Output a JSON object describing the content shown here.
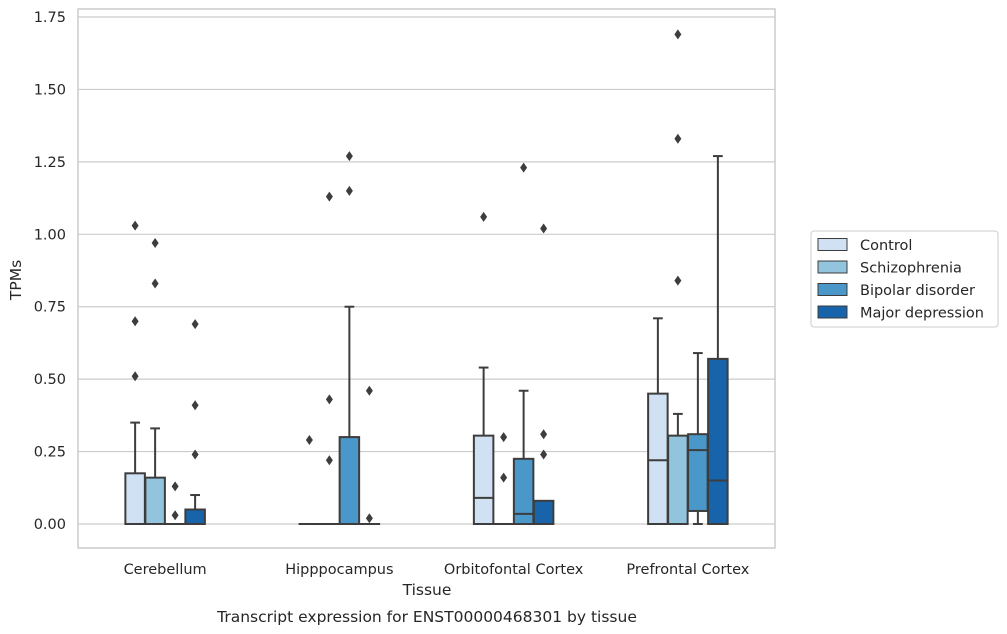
{
  "chart_data": {
    "type": "box",
    "title": "",
    "xlabel": "Tissue",
    "ylabel": "TPMs",
    "caption": "Transcript expression for ENST00000468301 by tissue",
    "categories": [
      "Cerebellum",
      "Hipppocampus",
      "Orbitofontal Cortex",
      "Prefrontal Cortex"
    ],
    "ylim": [
      -0.08,
      1.76
    ],
    "yticks": [
      0.0,
      0.25,
      0.5,
      0.75,
      1.0,
      1.25,
      1.5,
      1.75
    ],
    "ytick_labels": [
      "0.00",
      "0.25",
      "0.50",
      "0.75",
      "1.00",
      "1.25",
      "1.50",
      "1.75"
    ],
    "grid": "horizontal",
    "legend": {
      "placement": "right",
      "entries": [
        "Control",
        "Schizophrenia",
        "Bipolar disorder",
        "Major depression"
      ]
    },
    "colors": {
      "Control": "#cfe1f2",
      "Schizophrenia": "#93c4de",
      "Bipolar disorder": "#4a98c9",
      "Major depression": "#1764ab",
      "edge": "#3d3d3d",
      "grid": "#cccccc"
    },
    "series": [
      {
        "name": "Control",
        "boxes": [
          {
            "q1": 0.0,
            "median": 0.0,
            "q3": 0.175,
            "whisker_low": 0.0,
            "whisker_high": 0.35,
            "outliers": [
              0.51,
              0.7,
              1.03
            ]
          },
          {
            "q1": 0.0,
            "median": 0.0,
            "q3": 0.0,
            "whisker_low": 0.0,
            "whisker_high": 0.0,
            "outliers": [
              0.29
            ]
          },
          {
            "q1": 0.0,
            "median": 0.09,
            "q3": 0.305,
            "whisker_low": 0.0,
            "whisker_high": 0.54,
            "outliers": [
              1.06
            ]
          },
          {
            "q1": 0.0,
            "median": 0.22,
            "q3": 0.45,
            "whisker_low": 0.0,
            "whisker_high": 0.71,
            "outliers": []
          }
        ]
      },
      {
        "name": "Schizophrenia",
        "boxes": [
          {
            "q1": 0.0,
            "median": 0.0,
            "q3": 0.16,
            "whisker_low": 0.0,
            "whisker_high": 0.33,
            "outliers": [
              0.83,
              0.97
            ]
          },
          {
            "q1": 0.0,
            "median": 0.0,
            "q3": 0.0,
            "whisker_low": 0.0,
            "whisker_high": 0.0,
            "outliers": [
              0.22,
              0.43,
              1.13
            ]
          },
          {
            "q1": 0.0,
            "median": 0.0,
            "q3": 0.0,
            "whisker_low": 0.0,
            "whisker_high": 0.0,
            "outliers": [
              0.16,
              0.3
            ]
          },
          {
            "q1": 0.0,
            "median": 0.0,
            "q3": 0.305,
            "whisker_low": 0.0,
            "whisker_high": 0.38,
            "outliers": [
              0.84,
              1.33,
              1.69
            ]
          }
        ]
      },
      {
        "name": "Bipolar disorder",
        "boxes": [
          {
            "q1": 0.0,
            "median": 0.0,
            "q3": 0.0,
            "whisker_low": 0.0,
            "whisker_high": 0.0,
            "outliers": [
              0.03,
              0.13
            ]
          },
          {
            "q1": 0.0,
            "median": 0.0,
            "q3": 0.3,
            "whisker_low": 0.0,
            "whisker_high": 0.75,
            "outliers": [
              1.15,
              1.27
            ]
          },
          {
            "q1": 0.0,
            "median": 0.035,
            "q3": 0.225,
            "whisker_low": 0.0,
            "whisker_high": 0.46,
            "outliers": [
              1.23
            ]
          },
          {
            "q1": 0.045,
            "median": 0.255,
            "q3": 0.31,
            "whisker_low": 0.0,
            "whisker_high": 0.59,
            "outliers": []
          }
        ]
      },
      {
        "name": "Major depression",
        "boxes": [
          {
            "q1": 0.0,
            "median": 0.0,
            "q3": 0.05,
            "whisker_low": 0.0,
            "whisker_high": 0.1,
            "outliers": [
              0.24,
              0.41,
              0.69
            ]
          },
          {
            "q1": 0.0,
            "median": 0.0,
            "q3": 0.0,
            "whisker_low": 0.0,
            "whisker_high": 0.0,
            "outliers": [
              0.02,
              0.46
            ]
          },
          {
            "q1": 0.0,
            "median": 0.0,
            "q3": 0.08,
            "whisker_low": 0.0,
            "whisker_high": 0.08,
            "outliers": [
              0.24,
              0.31,
              1.02
            ]
          },
          {
            "q1": 0.0,
            "median": 0.15,
            "q3": 0.57,
            "whisker_low": 0.0,
            "whisker_high": 1.27,
            "outliers": []
          }
        ]
      }
    ]
  }
}
